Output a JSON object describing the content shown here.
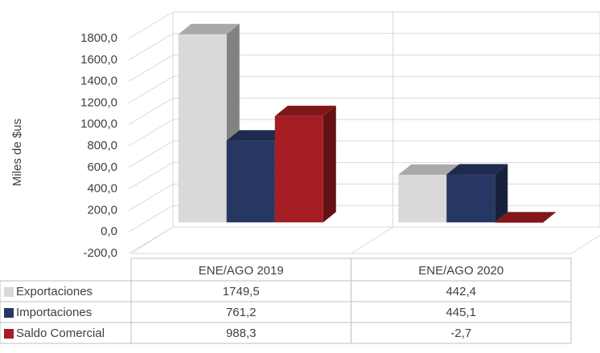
{
  "chart_data": {
    "type": "bar3d",
    "ylabel": "Miles de $us",
    "categories": [
      "ENE/AGO 2019",
      "ENE/AGO 2020"
    ],
    "series": [
      {
        "name": "Exportaciones",
        "color": "#d9d9d9",
        "values": [
          1749.5,
          442.4
        ],
        "value_labels": [
          "1749,5",
          "442,4"
        ]
      },
      {
        "name": "Importaciones",
        "color": "#263763",
        "values": [
          761.2,
          445.1
        ],
        "value_labels": [
          "761,2",
          "445,1"
        ]
      },
      {
        "name": "Saldo Comercial",
        "color": "#a51d22",
        "values": [
          988.3,
          -2.7
        ],
        "value_labels": [
          "988,3",
          "-2,7"
        ]
      }
    ],
    "ylim": [
      -200,
      1800
    ],
    "yticks": [
      {
        "value": -200,
        "label": "-200,0"
      },
      {
        "value": 0,
        "label": "0,0"
      },
      {
        "value": 200,
        "label": "200,0"
      },
      {
        "value": 400,
        "label": "400,0"
      },
      {
        "value": 600,
        "label": "600,0"
      },
      {
        "value": 800,
        "label": "800,0"
      },
      {
        "value": 1000,
        "label": "1000,0"
      },
      {
        "value": 1200,
        "label": "1200,0"
      },
      {
        "value": 1400,
        "label": "1400,0"
      },
      {
        "value": 1600,
        "label": "1600,0"
      },
      {
        "value": 1800,
        "label": "1800,0"
      }
    ],
    "grid": true
  }
}
